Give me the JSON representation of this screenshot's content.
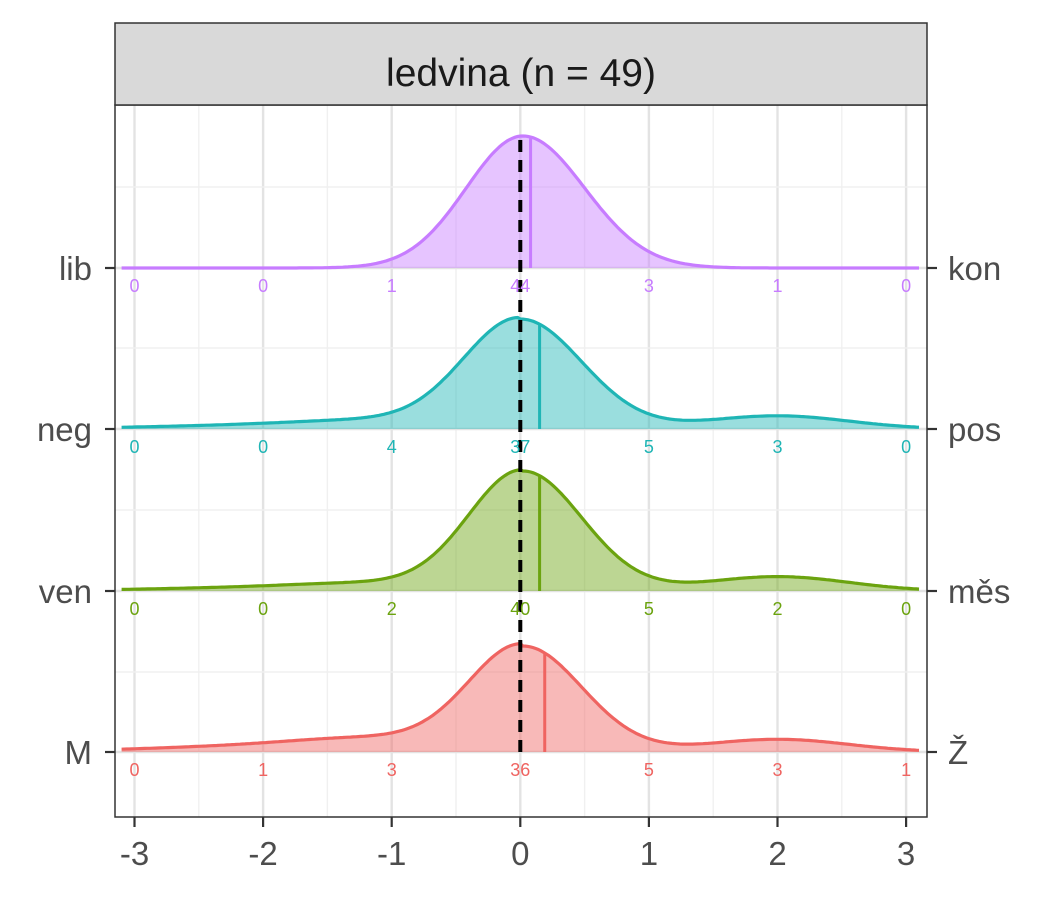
{
  "chart_data": {
    "type": "area",
    "title": "ledvina (n = 49)",
    "xlim": [
      -3.1,
      3.1
    ],
    "x_ticks": [
      -3,
      -2,
      -1,
      0,
      1,
      2,
      3
    ],
    "x_tick_labels": [
      "-3",
      "-2",
      "-1",
      "0",
      "1",
      "2",
      "3"
    ],
    "reference_line_x": 0,
    "reference_line_style": "dashed",
    "grid": true,
    "count_bins_x": [
      -3,
      -2,
      -1,
      0,
      1,
      2,
      3
    ],
    "series": [
      {
        "left_label": "lib",
        "right_label": "kon",
        "color": "#C77CFF",
        "median": 0.08,
        "density_peak_x": 0.02,
        "counts": [
          "0",
          "0",
          "1",
          "44",
          "3",
          "1",
          "0"
        ]
      },
      {
        "left_label": "neg",
        "right_label": "pos",
        "color": "#1FB5B5",
        "median": 0.15,
        "density_peak_x": 0.0,
        "counts": [
          "0",
          "0",
          "4",
          "37",
          "5",
          "3",
          "0"
        ]
      },
      {
        "left_label": "ven",
        "right_label": "měs",
        "color": "#6BA30F",
        "median": 0.15,
        "density_peak_x": 0.02,
        "counts": [
          "0",
          "0",
          "2",
          "40",
          "5",
          "2",
          "0"
        ]
      },
      {
        "left_label": "M",
        "right_label": "Ž",
        "color": "#EF6461",
        "median": 0.19,
        "density_peak_x": 0.02,
        "counts": [
          "0",
          "1",
          "3",
          "36",
          "5",
          "3",
          "1"
        ]
      }
    ]
  }
}
